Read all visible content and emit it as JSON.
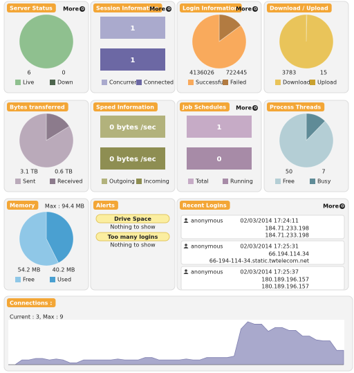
{
  "panels": [
    {
      "title": "Server Status",
      "more": "More",
      "kind": "pie",
      "values": [
        6,
        0
      ],
      "legend": [
        "Live",
        "Down"
      ],
      "colors": [
        "#8fc08f",
        "#4d654d"
      ]
    },
    {
      "title": "Session Information",
      "more": "More",
      "kind": "boxes",
      "values": [
        1,
        1
      ],
      "legend": [
        "Concurrent",
        "Connected"
      ],
      "colors": [
        "#aaaacd",
        "#6c68a4"
      ]
    },
    {
      "title": "Login Information",
      "more": "More",
      "kind": "pie",
      "values": [
        4136026,
        722445
      ],
      "legend": [
        "Successful",
        "Failed"
      ],
      "colors": [
        "#f9aa5c",
        "#b27b41"
      ]
    },
    {
      "title": "Download / Upload",
      "kind": "pie",
      "values": [
        3783,
        15
      ],
      "legend": [
        "Download",
        "Upload"
      ],
      "colors": [
        "#e9c45a",
        "#c9a12f"
      ]
    },
    {
      "title": "Bytes transferred",
      "kind": "pie",
      "values": [
        3.1,
        0.6
      ],
      "value_labels": [
        "3.1 TB",
        "0.6 TB"
      ],
      "legend": [
        "Sent",
        "Received"
      ],
      "colors": [
        "#baaaba",
        "#8c7b8c"
      ]
    },
    {
      "title": "Speed Information",
      "kind": "boxes",
      "values": [
        0,
        0
      ],
      "value_labels": [
        "0 bytes /sec",
        "0 bytes /sec"
      ],
      "legend": [
        "Outgoing",
        "Incoming"
      ],
      "colors": [
        "#b2b27c",
        "#8e8e52"
      ]
    },
    {
      "title": "Job Schedules",
      "more": "More",
      "kind": "boxes",
      "values": [
        1,
        0
      ],
      "legend": [
        "Total",
        "Running"
      ],
      "colors": [
        "#c6abc6",
        "#a78ba7"
      ]
    },
    {
      "title": "Process Threads",
      "kind": "pie",
      "values": [
        50,
        7
      ],
      "legend": [
        "Free",
        "Busy"
      ],
      "colors": [
        "#b4ced5",
        "#5f8b97"
      ]
    },
    {
      "title": "Memory",
      "max": "Max : 94.4 MB",
      "kind": "pie",
      "values": [
        54.2,
        40.2
      ],
      "value_labels": [
        "54.2 MB",
        "40.2 MB"
      ],
      "legend": [
        "Free",
        "Used"
      ],
      "colors": [
        "#8fc7e7",
        "#4aa0d1"
      ]
    },
    {
      "title": "Alerts",
      "kind": "alerts",
      "items": [
        {
          "heading": "Drive Space",
          "text": "Nothing to show"
        },
        {
          "heading": "Too many logins",
          "text": "Nothing to show"
        }
      ]
    },
    {
      "title": "Recent Logins",
      "more": "More",
      "kind": "logins",
      "entries": [
        {
          "user": "anonymous",
          "time": "02/03/2014 17:24:11",
          "lines": [
            "184.71.233.198",
            "184.71.233.198"
          ]
        },
        {
          "user": "anonymous",
          "time": "02/03/2014 17:25:31",
          "lines": [
            "66.194.114.34",
            "66-194-114-34.static.twtelecom.net"
          ]
        },
        {
          "user": "anonymous",
          "time": "02/03/2014 17:25:37",
          "lines": [
            "180.189.196.157",
            "180.189.196.157"
          ]
        }
      ]
    }
  ],
  "connections": {
    "title": "Connections :",
    "subtitle": "Current : 3, Max : 9",
    "color": "#a9a9cc",
    "values": [
      0,
      0,
      1,
      1,
      1.3,
      1.3,
      1,
      1.2,
      1,
      0.4,
      0.4,
      1,
      1,
      1,
      1,
      1,
      1.2,
      1,
      1,
      1,
      1.5,
      1.5,
      1,
      1,
      1,
      1,
      1.2,
      1,
      1,
      1.5,
      1.5,
      1.5,
      1.5,
      1.8,
      7.5,
      9,
      8.5,
      8.5,
      7,
      7.8,
      7.8,
      7.2,
      7.2,
      6,
      6,
      5.2,
      5,
      5,
      3,
      3
    ]
  }
}
